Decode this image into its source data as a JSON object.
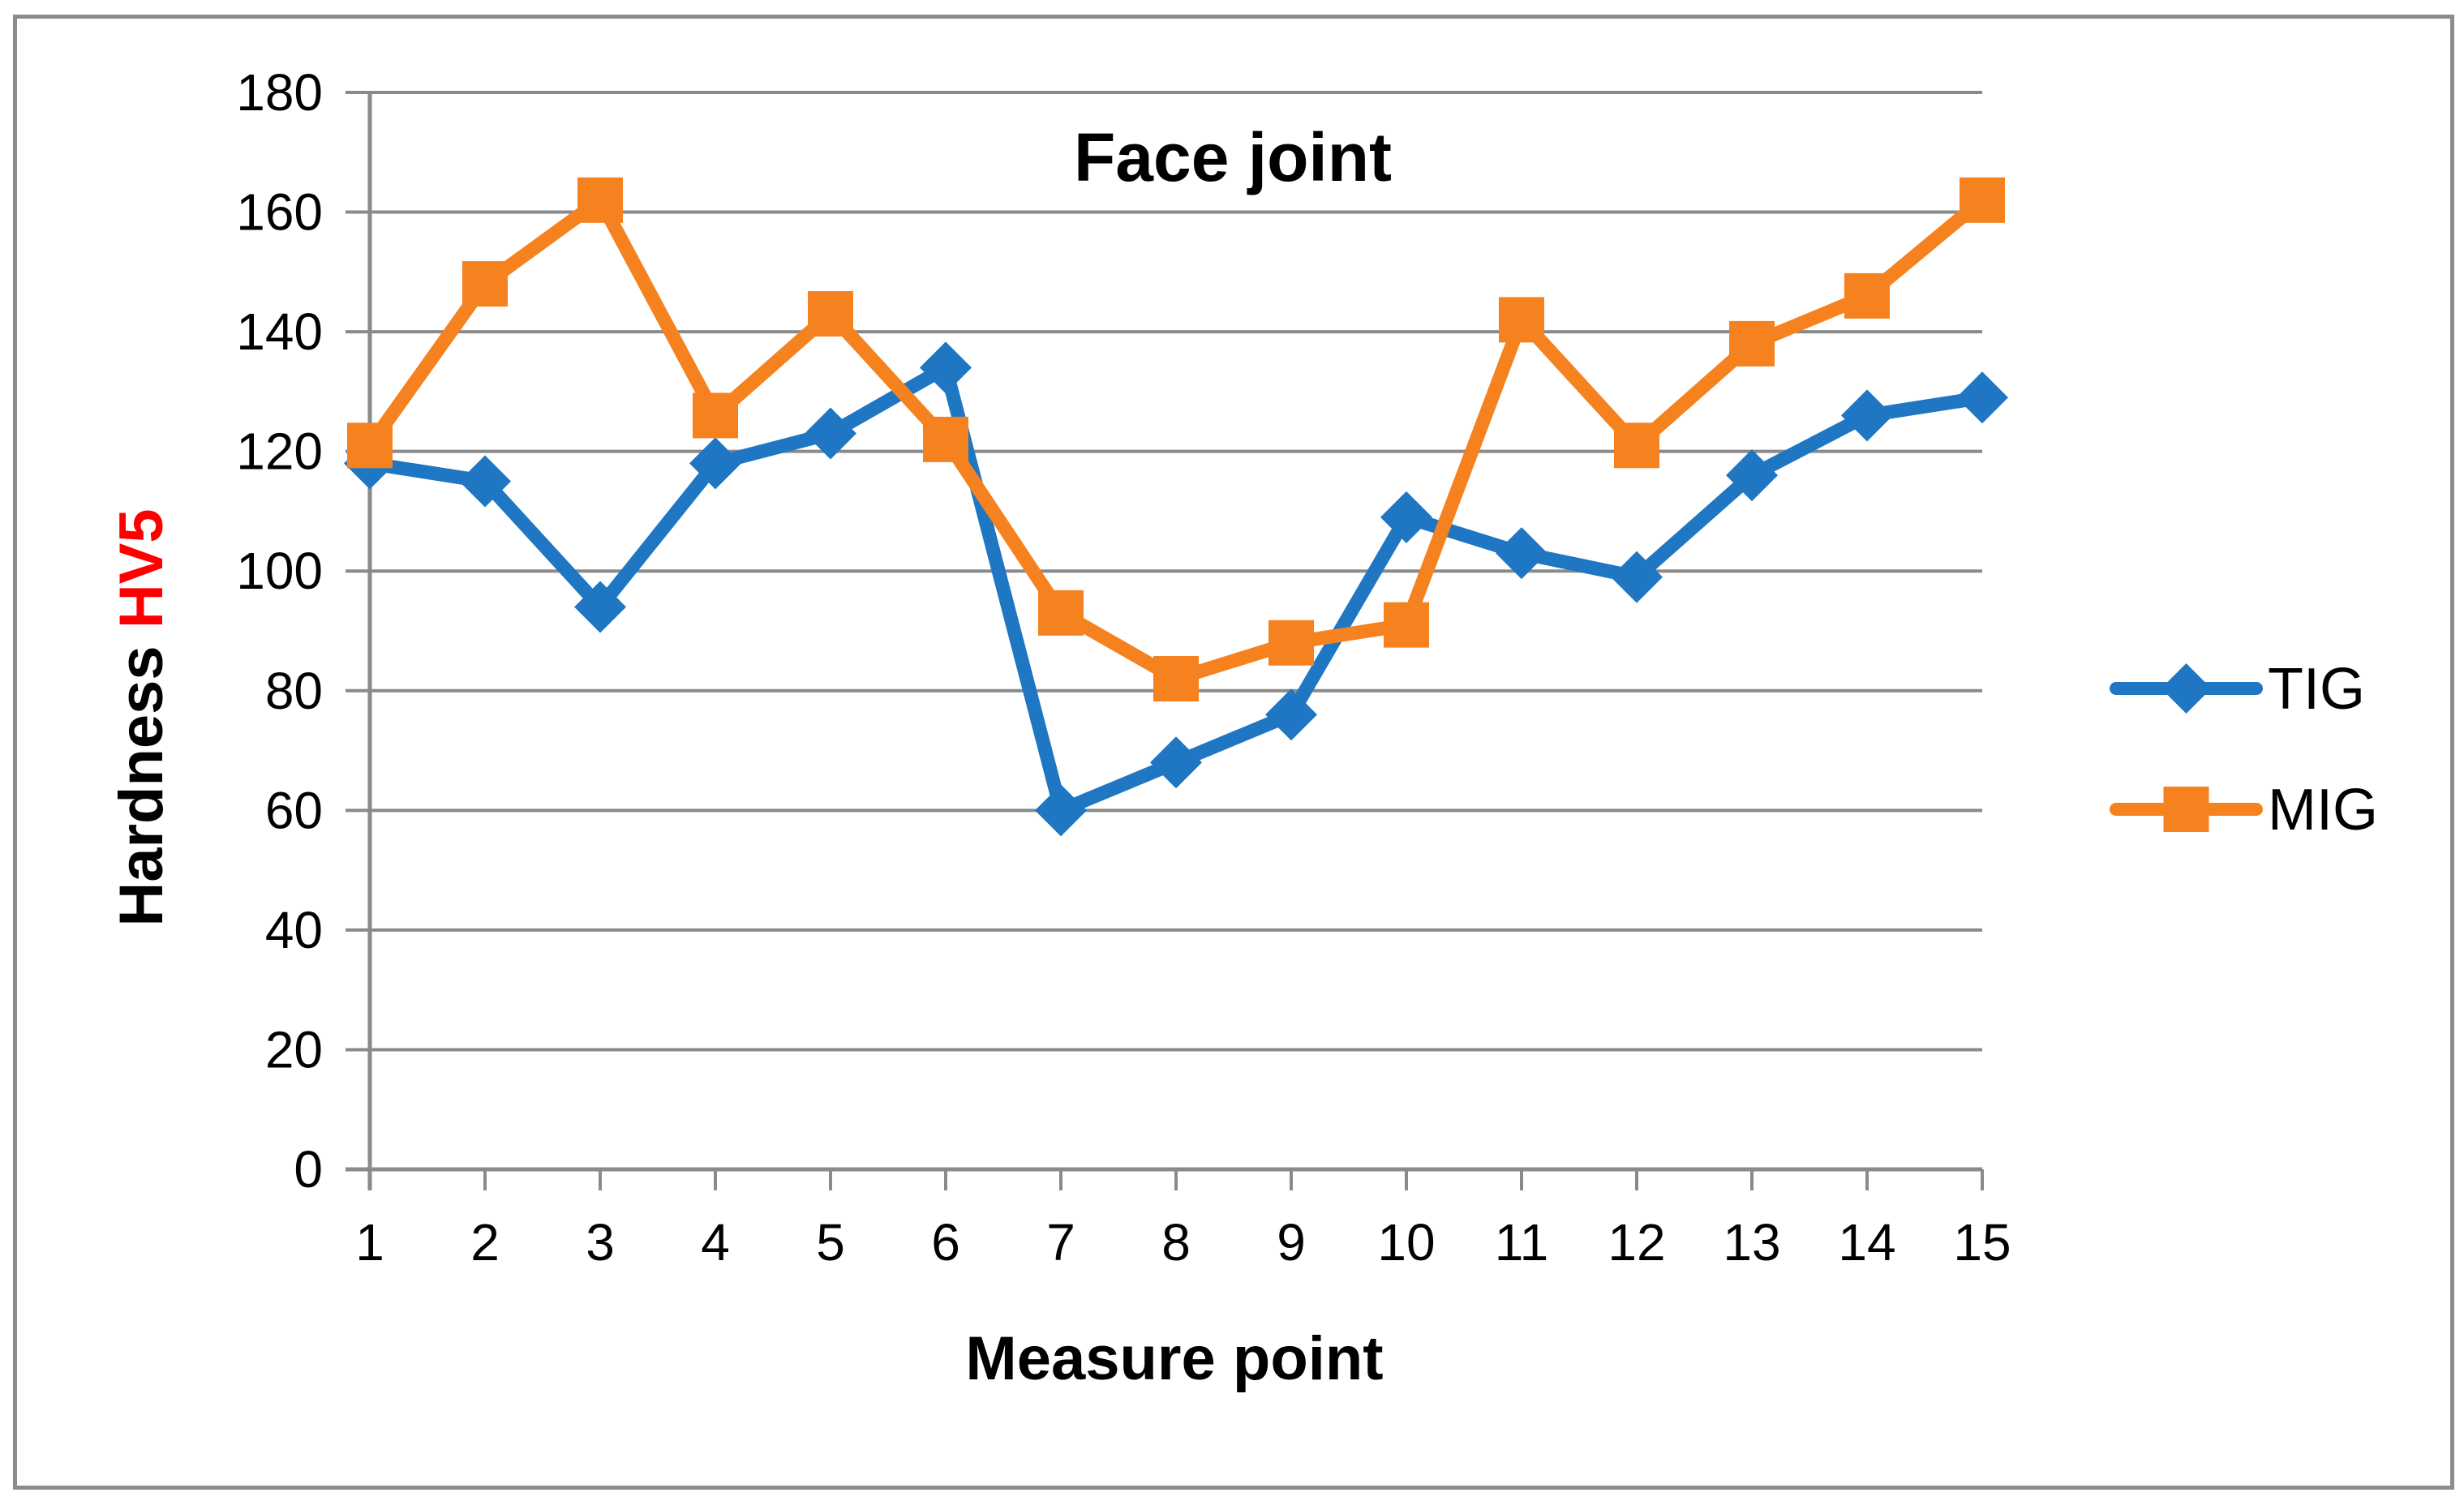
{
  "figure": {
    "title": "Face joint",
    "x_axis_title": "Measure point",
    "y_axis_title_black": "Hardness",
    "y_axis_title_red": "HV5"
  },
  "chart_data": {
    "type": "line",
    "title": "Face joint",
    "xlabel": "Measure point",
    "ylabel": "Hardness HV5",
    "categories": [
      "1",
      "2",
      "3",
      "4",
      "5",
      "6",
      "7",
      "8",
      "9",
      "10",
      "11",
      "12",
      "13",
      "14",
      "15"
    ],
    "series": [
      {
        "name": "TIG",
        "marker": "diamond",
        "color": "#1F76C2",
        "values": [
          118,
          115,
          94,
          118,
          123,
          134,
          60,
          68,
          76,
          109,
          103,
          99,
          116,
          126,
          129
        ]
      },
      {
        "name": "MIG",
        "marker": "square",
        "color": "#F5821F",
        "values": [
          121,
          148,
          162,
          126,
          143,
          122,
          93,
          82,
          88,
          91,
          142,
          121,
          138,
          146,
          162
        ]
      }
    ],
    "ylim": [
      0,
      180
    ],
    "y_tick_step": 20,
    "grid": true,
    "legend_position": "right"
  },
  "style": {
    "grid_color": "#8A8A8A",
    "axis_color": "#8A8A8A",
    "border_color": "#8C8C8C",
    "text_color": "#000000",
    "accent_red": "#FF0000",
    "background": "#FFFFFF"
  }
}
